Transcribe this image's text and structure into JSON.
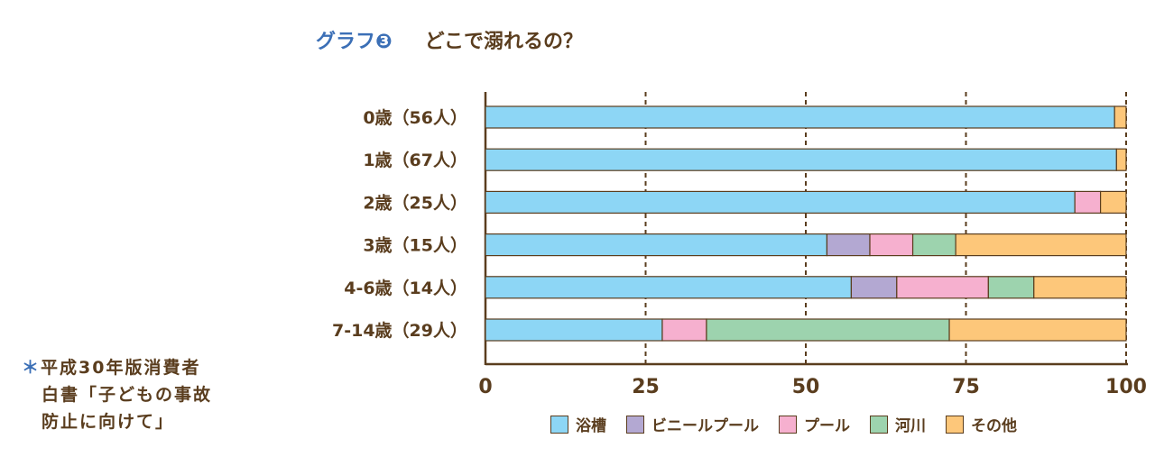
{
  "chart_data": {
    "type": "bar",
    "stacked": true,
    "orientation": "horizontal",
    "title_prefix": "グラフ❸",
    "title": "どこで溺れるの？",
    "categories": [
      "0歳（56人）",
      "1歳（67人）",
      "2歳（25人）",
      "3歳（15人）",
      "4-6歳（14人）",
      "7-14歳（29人）"
    ],
    "series": [
      {
        "name": "浴槽",
        "color": "#8dd6f5",
        "values": [
          98.2,
          98.5,
          92.0,
          53.3,
          57.1,
          27.6
        ]
      },
      {
        "name": "ビニールプール",
        "color": "#b3a8d2",
        "values": [
          0,
          0,
          0,
          6.7,
          7.1,
          0
        ]
      },
      {
        "name": "プール",
        "color": "#f6b0cf",
        "values": [
          0,
          0,
          4.0,
          6.7,
          14.3,
          6.9
        ]
      },
      {
        "name": "河川",
        "color": "#9dd3ae",
        "values": [
          0,
          0,
          0,
          6.7,
          7.1,
          37.9
        ]
      },
      {
        "name": "その他",
        "color": "#fdc77a",
        "values": [
          1.8,
          1.5,
          4.0,
          26.6,
          14.4,
          27.6
        ]
      }
    ],
    "xlim": [
      0,
      100
    ],
    "xticks": [
      "0",
      "25",
      "50",
      "75",
      "100"
    ],
    "grid": "dashed vertical",
    "legend": "bottom"
  },
  "footnote": {
    "marker": "＊",
    "lines": [
      "平成30年版消費者",
      "白書「子どもの事故",
      "防止に向けて」"
    ]
  }
}
